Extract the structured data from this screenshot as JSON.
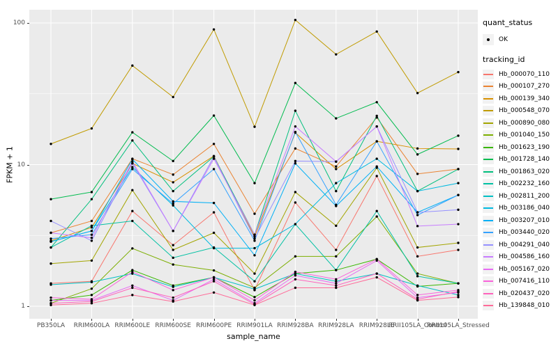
{
  "legend": {
    "quant_title": "quant_status",
    "quant_items": [
      "OK"
    ],
    "tracking_title": "tracking_id"
  },
  "colors": {
    "panel_bg": "#EBEBEB",
    "grid": "#FFFFFF",
    "tick_text": "#4D4D4D",
    "axis_title": "#000000",
    "point": "#000000",
    "legend_key_bg": "#F2F2F2"
  },
  "chart_data": {
    "type": "line",
    "title": "",
    "xlabel": "sample_name",
    "ylabel": "FPKM + 1",
    "y_scale": "log10",
    "y_major_ticks": [
      1,
      10,
      100
    ],
    "y_minor_ticks": [
      3.1623,
      31.6228
    ],
    "ylim": [
      0.82,
      124
    ],
    "grid": true,
    "legend_position": "right",
    "point_shape": "black dot (quant_status OK)",
    "categories": [
      "PB350LA",
      "RRIM600LA",
      "RRIM600LE",
      "RRIM600SE",
      "RRIM600PE",
      "RRIM901LA",
      "RRIM928BA",
      "RRIM928LA",
      "RRIM928LE",
      "RRII105LA_Control",
      "RRII105LA_Stressed"
    ],
    "series": [
      {
        "name": "Hb_000070_110",
        "color": "#F8766D",
        "values": [
          1.45,
          1.5,
          4.7,
          2.7,
          4.6,
          1.3,
          5.4,
          2.5,
          8.3,
          2.25,
          2.5
        ]
      },
      {
        "name": "Hb_000107_270",
        "color": "#EA8331",
        "values": [
          3.3,
          4.0,
          11.0,
          8.5,
          14.0,
          4.5,
          13.0,
          9.7,
          21.5,
          8.6,
          9.3
        ]
      },
      {
        "name": "Hb_000139_340",
        "color": "#D89000",
        "values": [
          2.9,
          3.6,
          10.2,
          7.5,
          11.5,
          3.1,
          16.8,
          9.3,
          14.6,
          13.0,
          12.9
        ]
      },
      {
        "name": "Hb_000548_070",
        "color": "#C09B00",
        "values": [
          14.0,
          18.0,
          50.0,
          30.0,
          90.0,
          18.5,
          105.0,
          60.0,
          87.0,
          32.0,
          45.0
        ]
      },
      {
        "name": "Hb_000890_080",
        "color": "#A3A500",
        "values": [
          2.0,
          2.1,
          6.6,
          2.5,
          3.3,
          1.7,
          6.4,
          3.7,
          9.5,
          2.6,
          2.8
        ]
      },
      {
        "name": "Hb_001040_150",
        "color": "#7CAE00",
        "values": [
          1.05,
          1.33,
          2.56,
          1.97,
          1.79,
          1.35,
          2.25,
          2.25,
          4.3,
          1.7,
          1.45
        ]
      },
      {
        "name": "Hb_001623_190",
        "color": "#39B600",
        "values": [
          1.1,
          1.2,
          1.8,
          1.4,
          1.6,
          1.16,
          1.7,
          1.8,
          2.15,
          1.38,
          1.45
        ]
      },
      {
        "name": "Hb_001728_140",
        "color": "#00BB4E",
        "values": [
          5.7,
          6.4,
          16.9,
          10.6,
          22.2,
          7.4,
          37.7,
          21.2,
          27.6,
          11.8,
          16.0
        ]
      },
      {
        "name": "Hb_001863_020",
        "color": "#00BF7D",
        "values": [
          2.6,
          5.7,
          14.8,
          6.5,
          11.4,
          3.2,
          24.0,
          6.5,
          22.1,
          6.5,
          9.3
        ]
      },
      {
        "name": "Hb_002232_160",
        "color": "#00C1A3",
        "values": [
          2.6,
          3.7,
          4.0,
          2.2,
          2.6,
          1.5,
          3.8,
          1.8,
          4.7,
          1.63,
          1.45
        ]
      },
      {
        "name": "Hb_002811_200",
        "color": "#00BFC4",
        "values": [
          1.42,
          1.48,
          1.7,
          1.37,
          1.6,
          1.32,
          1.7,
          1.5,
          1.7,
          1.4,
          1.2
        ]
      },
      {
        "name": "Hb_003186_040",
        "color": "#00BAE0",
        "values": [
          2.86,
          3.4,
          9.6,
          5.15,
          2.57,
          2.57,
          3.8,
          7.4,
          11.0,
          6.5,
          7.4
        ]
      },
      {
        "name": "Hb_003207_010",
        "color": "#00B0F6",
        "values": [
          2.86,
          3.4,
          10.9,
          5.5,
          5.36,
          2.29,
          10.2,
          5.1,
          9.7,
          4.6,
          6.1
        ]
      },
      {
        "name": "Hb_003440_020",
        "color": "#35A2FF",
        "values": [
          3.0,
          3.2,
          9.3,
          5.3,
          9.3,
          2.9,
          17.0,
          5.2,
          14.6,
          4.4,
          6.1
        ]
      },
      {
        "name": "Hb_004291_040",
        "color": "#9590FF",
        "values": [
          4.0,
          2.9,
          10.2,
          3.4,
          11.4,
          3.0,
          10.6,
          10.5,
          18.6,
          4.6,
          4.8
        ]
      },
      {
        "name": "Hb_004586_160",
        "color": "#C77CFF",
        "values": [
          3.3,
          3.04,
          10.5,
          3.4,
          11.0,
          3.2,
          18.6,
          10.5,
          18.6,
          3.68,
          3.8
        ]
      },
      {
        "name": "Hb_005167_020",
        "color": "#E76BF3",
        "values": [
          1.1,
          1.1,
          1.4,
          1.1,
          1.55,
          1.05,
          1.65,
          1.45,
          2.1,
          1.15,
          1.25
        ]
      },
      {
        "name": "Hb_007416_110",
        "color": "#FA62DB",
        "values": [
          1.15,
          1.12,
          1.75,
          1.3,
          1.6,
          1.1,
          1.75,
          1.55,
          2.15,
          1.2,
          1.3
        ]
      },
      {
        "name": "Hb_020437_020",
        "color": "#FF62BC",
        "values": [
          1.05,
          1.08,
          1.35,
          1.15,
          1.5,
          1.03,
          1.55,
          1.4,
          1.7,
          1.12,
          1.27
        ]
      },
      {
        "name": "Hb_139848_010",
        "color": "#FF6A98",
        "values": [
          1.02,
          1.05,
          1.2,
          1.08,
          1.25,
          1.02,
          1.35,
          1.35,
          1.6,
          1.1,
          1.16
        ]
      }
    ]
  }
}
